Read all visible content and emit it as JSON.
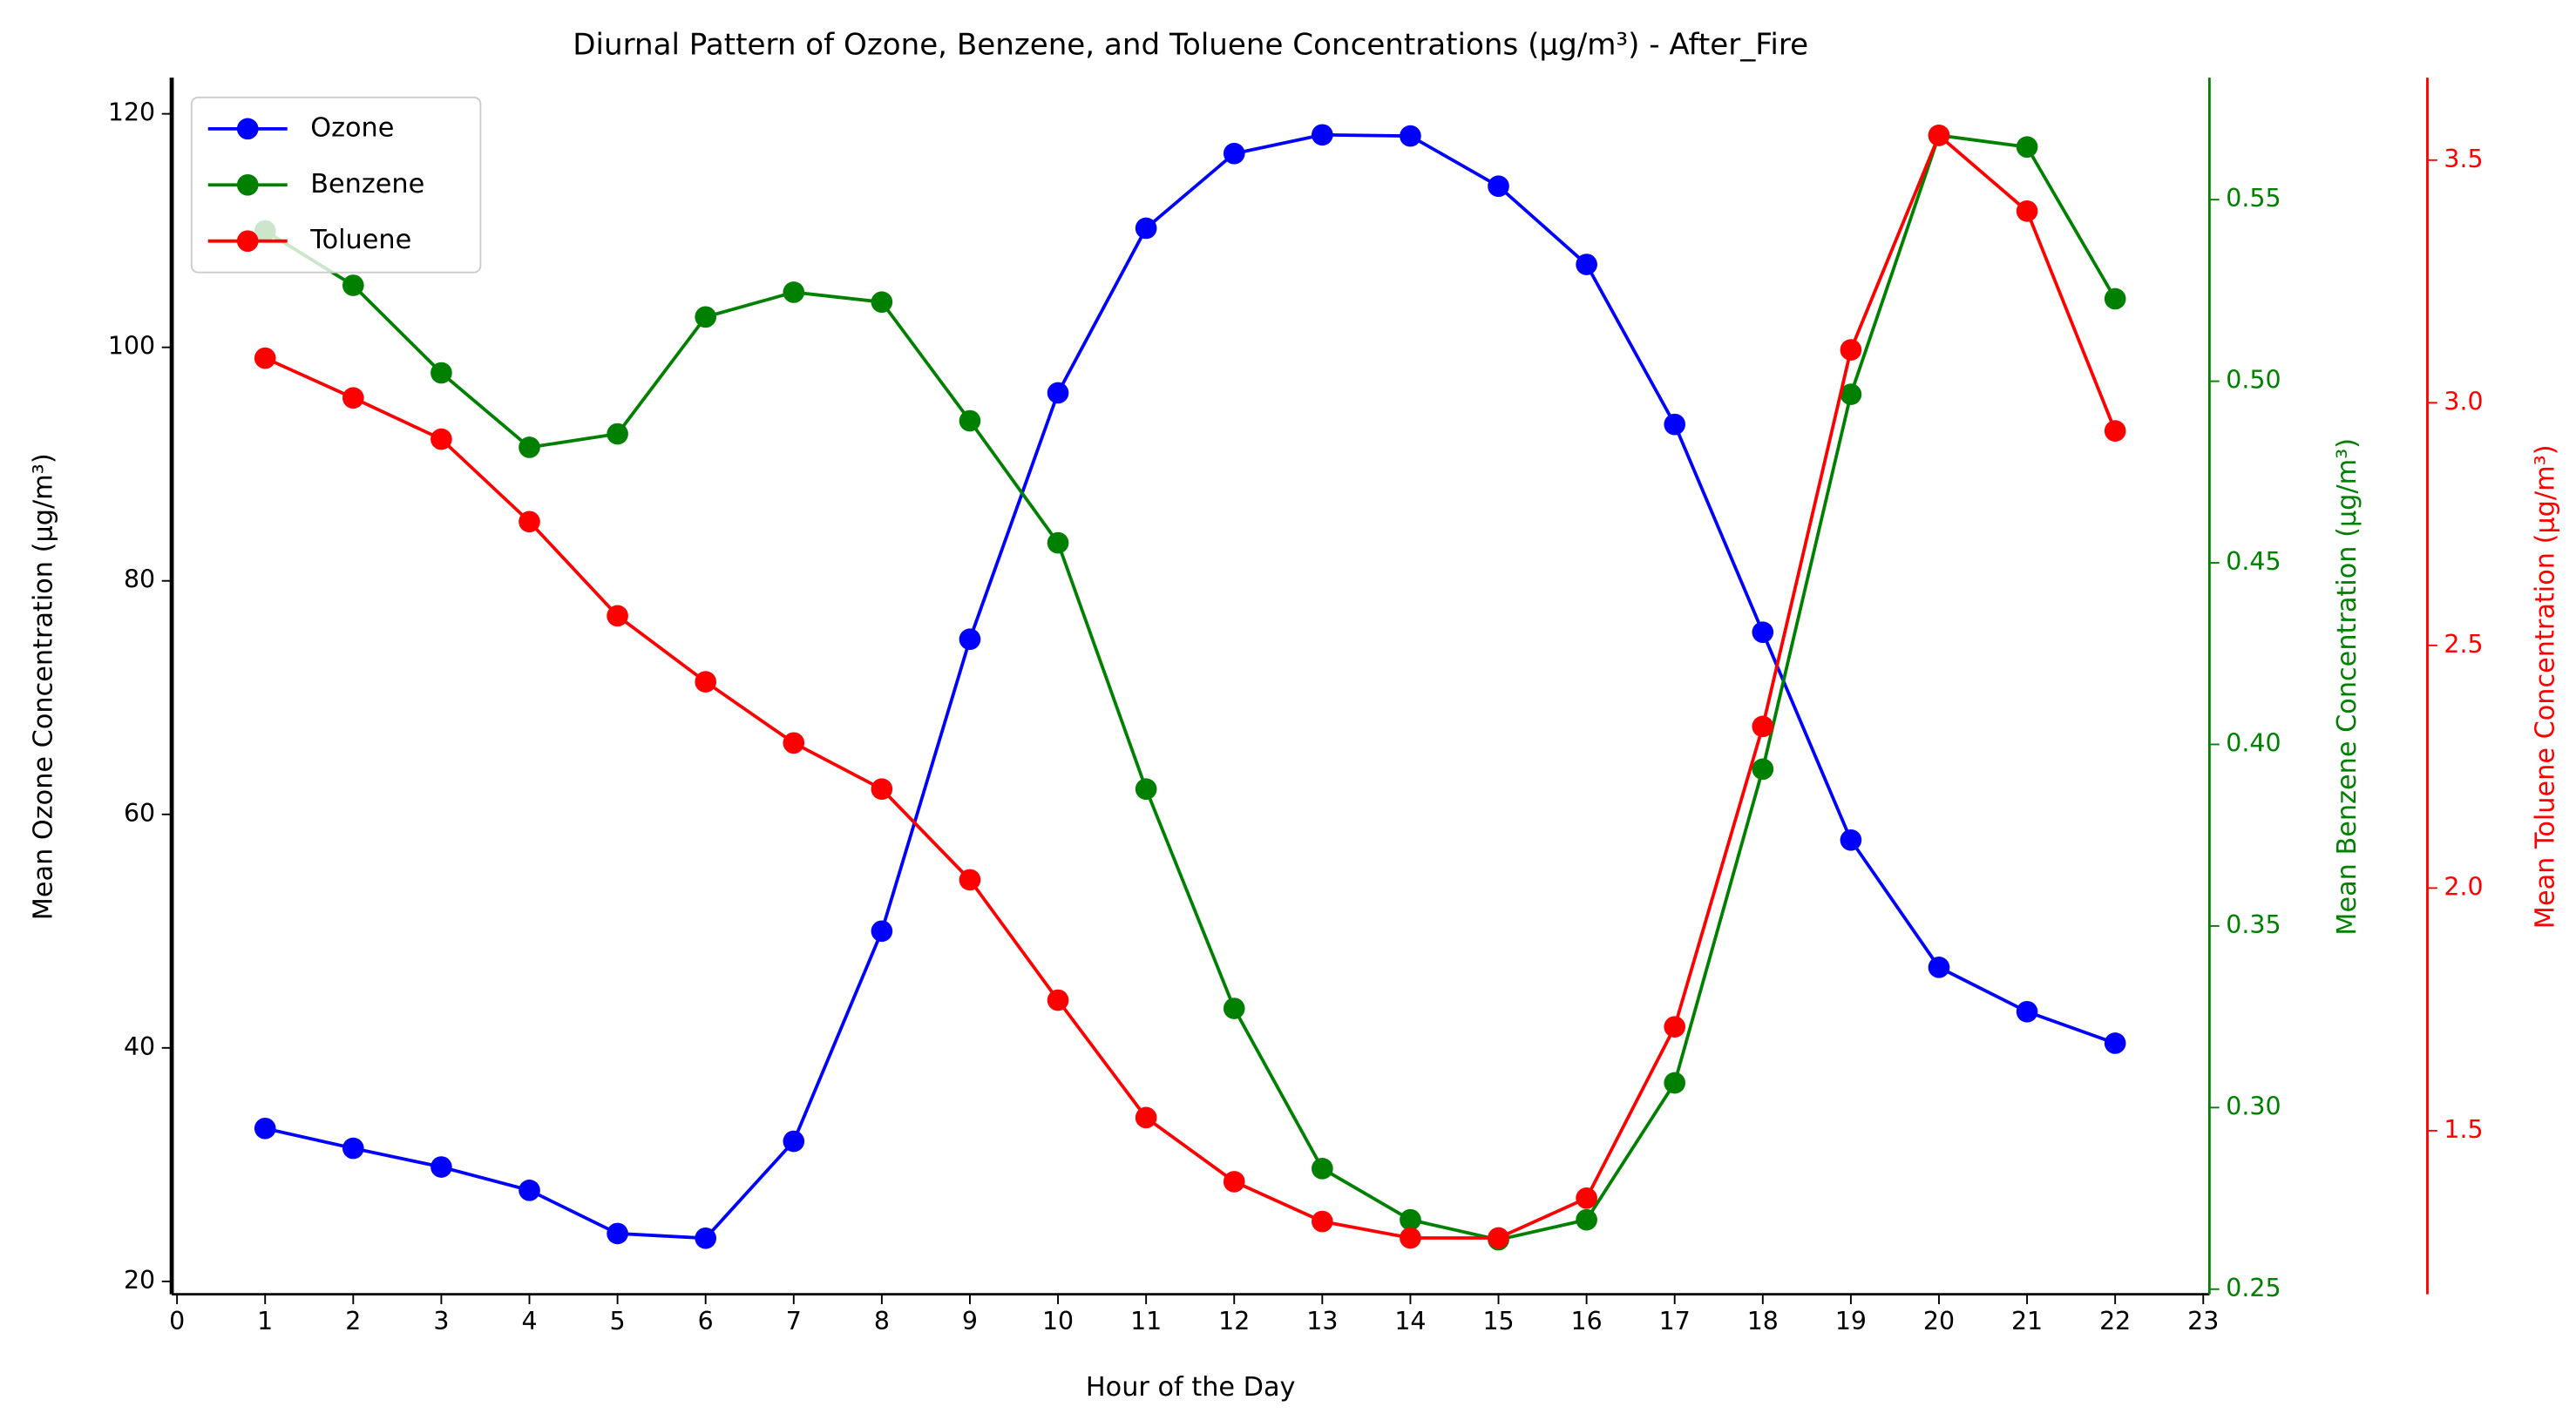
{
  "chart_data": {
    "type": "line",
    "title": "Diurnal Pattern of Ozone, Benzene, and Toluene Concentrations (µg/m³) - After_Fire",
    "xlabel": "Hour of the Day",
    "ylabel": "Mean Ozone Concentration (µg/m³)",
    "y2label": "Mean Benzene Concentration (µg/m³)",
    "y3label": "Mean Toluene Concentration (µg/m³)",
    "x": [
      1,
      2,
      3,
      4,
      5,
      6,
      7,
      8,
      9,
      10,
      11,
      12,
      13,
      14,
      15,
      16,
      17,
      18,
      19,
      20,
      21,
      22
    ],
    "xlim": [
      -0.06,
      23.07
    ],
    "xticks": [
      0,
      1,
      2,
      3,
      4,
      5,
      6,
      7,
      8,
      9,
      10,
      11,
      12,
      13,
      14,
      15,
      16,
      17,
      18,
      19,
      20,
      21,
      22,
      23
    ],
    "ylim": [
      18.9,
      123.1
    ],
    "yticks": [
      20,
      40,
      60,
      80,
      100,
      120
    ],
    "y2lim": [
      0.2486,
      0.5836
    ],
    "y2ticks": [
      0.25,
      {
        "value": 0.3,
        "label": "0.30"
      },
      0.35,
      {
        "value": 0.4,
        "label": "0.40"
      },
      0.45,
      {
        "value": 0.5,
        "label": "0.50"
      },
      0.55
    ],
    "y3lim": [
      1.163,
      3.67
    ],
    "y3ticks": [
      1.5,
      {
        "value": 2.0,
        "label": "2.0"
      },
      2.5,
      {
        "value": 3.0,
        "label": "3.0"
      },
      3.5
    ],
    "grid": false,
    "legend": "upper left",
    "series": [
      {
        "name": "Ozone",
        "color": "#0000ff",
        "axis": "y",
        "values": [
          33.1,
          31.4,
          29.8,
          27.8,
          24.1,
          23.7,
          32.0,
          50.0,
          75.0,
          96.1,
          110.2,
          116.6,
          118.2,
          118.1,
          113.8,
          107.1,
          93.4,
          75.6,
          57.8,
          46.9,
          43.1,
          40.4
        ]
      },
      {
        "name": "Benzene",
        "color": "#008000",
        "axis": "y2",
        "values": [
          0.5414,
          0.5264,
          0.5023,
          0.4818,
          0.4855,
          0.5177,
          0.5245,
          0.5218,
          0.4891,
          0.4555,
          0.3877,
          0.3273,
          0.2832,
          0.2691,
          0.2636,
          0.2691,
          0.3068,
          0.3932,
          0.4964,
          0.5677,
          0.5645,
          0.5227
        ]
      },
      {
        "name": "Toluene",
        "color": "#ff0000",
        "axis": "y3",
        "values": [
          3.092,
          3.01,
          2.925,
          2.755,
          2.561,
          2.425,
          2.299,
          2.204,
          2.017,
          1.769,
          1.527,
          1.395,
          1.313,
          1.279,
          1.279,
          1.361,
          1.714,
          2.333,
          3.109,
          3.551,
          3.395,
          2.942
        ]
      }
    ]
  }
}
